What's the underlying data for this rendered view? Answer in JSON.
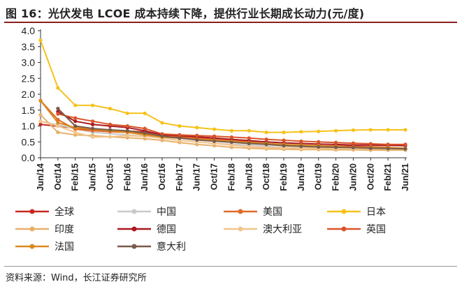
{
  "title": "图 16：光伏发电 LCOE 成本持续下降，提供行业长期成长动力(元/度)",
  "source": "资料来源：Wind，长江证券研究所",
  "chart_data": {
    "type": "line",
    "categories": [
      "Jun/14",
      "Oct/14",
      "Feb/15",
      "Jun/15",
      "Oct/15",
      "Feb/16",
      "Jun/16",
      "Oct/16",
      "Feb/17",
      "Jun/17",
      "Oct/17",
      "Feb/18",
      "Jun/18",
      "Oct/18",
      "Feb/19",
      "Jun/19",
      "Oct/19",
      "Feb/20",
      "Jun/20",
      "Oct/20",
      "Feb/21",
      "Jun/21"
    ],
    "ylim": [
      0,
      4.0
    ],
    "yticks": [
      "0.0",
      "0.5",
      "1.0",
      "1.5",
      "2.0",
      "2.5",
      "3.0",
      "3.5",
      "4.0"
    ],
    "grid": false,
    "legend_position": "bottom",
    "series": [
      {
        "name": "全球",
        "color": "#c8281e",
        "values": [
          1.05,
          null,
          null,
          0.88,
          null,
          null,
          0.82,
          null,
          0.65,
          null,
          0.55,
          null,
          0.5,
          null,
          0.4,
          null,
          0.38,
          null,
          0.36,
          null,
          0.33,
          null
        ]
      },
      {
        "name": "中国",
        "color": "#c9c9c9",
        "values": [
          1.15,
          null,
          null,
          0.8,
          null,
          null,
          0.68,
          null,
          0.55,
          null,
          0.45,
          null,
          0.4,
          null,
          0.32,
          null,
          0.3,
          null,
          0.28,
          null,
          0.26,
          null
        ]
      },
      {
        "name": "美国",
        "color": "#e06a28",
        "values": [
          1.8,
          1.2,
          0.9,
          0.85,
          0.82,
          0.8,
          0.75,
          0.7,
          0.68,
          0.62,
          0.58,
          0.55,
          0.5,
          0.45,
          0.4,
          0.38,
          0.36,
          0.35,
          0.33,
          0.32,
          0.3,
          0.28
        ]
      },
      {
        "name": "日本",
        "color": "#f5c21a",
        "values": [
          3.7,
          2.2,
          1.65,
          1.65,
          1.55,
          1.4,
          1.4,
          1.1,
          1.0,
          0.95,
          0.9,
          0.85,
          0.85,
          0.8,
          0.8,
          0.82,
          0.83,
          0.85,
          0.87,
          0.88,
          0.88,
          0.88
        ]
      },
      {
        "name": "印度",
        "color": "#e7b06a",
        "values": [
          1.35,
          0.8,
          0.72,
          0.7,
          0.66,
          0.63,
          0.6,
          0.55,
          0.48,
          0.42,
          0.38,
          0.33,
          0.3,
          0.28,
          0.27,
          0.26,
          0.26,
          0.25,
          0.25,
          0.24,
          0.24,
          0.24
        ]
      },
      {
        "name": "德国",
        "color": "#a8181f",
        "values": [
          null,
          1.45,
          1.15,
          1.05,
          1.0,
          0.95,
          0.85,
          0.72,
          0.7,
          0.66,
          0.62,
          0.58,
          0.54,
          0.5,
          0.47,
          0.45,
          0.43,
          0.42,
          0.4,
          0.4,
          0.39,
          0.38
        ]
      },
      {
        "name": "澳大利亚",
        "color": "#f2c58e",
        "values": [
          1.15,
          1.0,
          0.8,
          0.65,
          0.66,
          0.7,
          0.67,
          0.62,
          0.55,
          0.5,
          0.45,
          0.4,
          0.35,
          0.32,
          0.31,
          0.3,
          0.3,
          0.29,
          0.29,
          0.28,
          0.28,
          0.28
        ]
      },
      {
        "name": "英国",
        "color": "#d9542a",
        "values": [
          null,
          1.38,
          1.25,
          1.15,
          1.05,
          1.0,
          0.92,
          0.75,
          0.72,
          0.7,
          0.68,
          0.65,
          0.62,
          0.58,
          0.55,
          0.52,
          0.5,
          0.48,
          0.46,
          0.44,
          0.42,
          0.42
        ]
      },
      {
        "name": "法国",
        "color": "#d98a1f",
        "values": [
          1.8,
          1.1,
          0.95,
          0.9,
          0.85,
          0.8,
          0.72,
          0.65,
          0.62,
          0.58,
          0.55,
          0.52,
          0.48,
          0.45,
          0.42,
          0.4,
          0.38,
          0.36,
          0.34,
          0.33,
          0.32,
          0.3
        ]
      },
      {
        "name": "意大利",
        "color": "#7a5b49",
        "values": [
          null,
          1.55,
          1.0,
          0.92,
          0.88,
          0.85,
          0.78,
          0.68,
          0.62,
          0.56,
          0.52,
          0.49,
          0.45,
          0.42,
          0.38,
          0.36,
          0.34,
          0.33,
          0.32,
          0.3,
          0.29,
          0.28
        ]
      }
    ]
  }
}
